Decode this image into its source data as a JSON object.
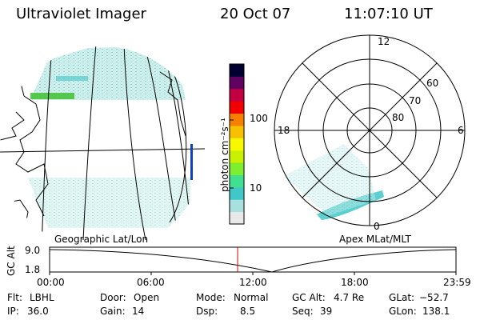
{
  "header": {
    "instrument": "Ultraviolet Imager",
    "date": "20 Oct 07",
    "time": "11:07:10 UT"
  },
  "colorbar": {
    "label": "photon cm⁻²s⁻¹",
    "ticks": [
      "100",
      "10"
    ],
    "scale": "log",
    "colors": [
      "#e8e8e8",
      "#a8e0e0",
      "#40c8c8",
      "#40e090",
      "#80ee30",
      "#c8f000",
      "#f8f800",
      "#f8c000",
      "#f88000",
      "#f00000",
      "#c00040",
      "#600060",
      "#000030"
    ]
  },
  "left_panel": {
    "caption": "Geographic Lat/Lon",
    "aurora_color": "#7ed6d0",
    "accent_color": "#40c030"
  },
  "right_panel": {
    "caption": "Apex  MLat/MLT",
    "mlt_labels": {
      "top": "12",
      "left": "18",
      "right": "6",
      "bottom": "0"
    },
    "lat_labels": [
      "60",
      "70",
      "80"
    ]
  },
  "altitude_plot": {
    "ylabel": "GC Alt",
    "yticks": [
      "9.0",
      "1.8"
    ],
    "xticks": [
      "00:00",
      "06:00",
      "12:00",
      "18:00",
      "23:59"
    ],
    "marker_color": "#e00000"
  },
  "footer": {
    "row1": [
      {
        "key": "Flt:",
        "value": "LBHL"
      },
      {
        "key": "Door:",
        "value": "Open"
      },
      {
        "key": "Mode:",
        "value": "Normal"
      },
      {
        "key": "GC Alt:",
        "value": "4.7 Re"
      },
      {
        "key": "GLat:",
        "value": "−52.7"
      }
    ],
    "row2": [
      {
        "key": "IP:",
        "value": "36.0"
      },
      {
        "key": "Gain:",
        "value": "14"
      },
      {
        "key": "Dsp:",
        "value": "8.5"
      },
      {
        "key": "Seq:",
        "value": "39"
      },
      {
        "key": "GLon:",
        "value": "138.1"
      }
    ]
  }
}
